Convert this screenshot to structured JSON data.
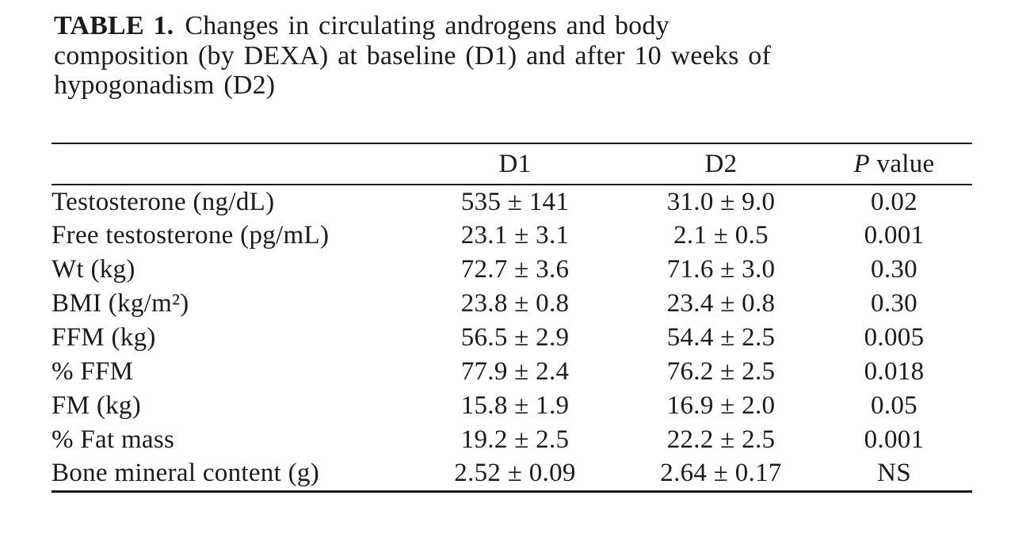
{
  "caption": {
    "label": "TABLE 1.",
    "lines": [
      "Changes in circulating androgens and body",
      "composition (by DEXA) at baseline (D1) and after 10 weeks of",
      "hypogonadism (D2)"
    ]
  },
  "table": {
    "headers": {
      "label": "",
      "d1": "D1",
      "d2": "D2",
      "p_italic": "P",
      "p_word": "value"
    },
    "rows": [
      {
        "label": "Testosterone (ng/dL)",
        "d1": "535 ± 141",
        "d2": "31.0 ± 9.0",
        "p": "0.02"
      },
      {
        "label": "Free testosterone (pg/mL)",
        "d1": "23.1 ± 3.1",
        "d2": "2.1 ± 0.5",
        "p": "0.001"
      },
      {
        "label": "Wt (kg)",
        "d1": "72.7 ± 3.6",
        "d2": "71.6 ± 3.0",
        "p": "0.30"
      },
      {
        "label": "BMI (kg/m²)",
        "d1": "23.8 ± 0.8",
        "d2": "23.4 ± 0.8",
        "p": "0.30"
      },
      {
        "label": "FFM (kg)",
        "d1": "56.5 ± 2.9",
        "d2": "54.4 ± 2.5",
        "p": "0.005"
      },
      {
        "label": "% FFM",
        "d1": "77.9 ± 2.4",
        "d2": "76.2 ± 2.5",
        "p": "0.018"
      },
      {
        "label": "FM (kg)",
        "d1": "15.8 ± 1.9",
        "d2": "16.9 ± 2.0",
        "p": "0.05"
      },
      {
        "label": "% Fat mass",
        "d1": "19.2 ± 2.5",
        "d2": "22.2 ± 2.5",
        "p": "0.001"
      },
      {
        "label": "Bone mineral content (g)",
        "d1": "2.52 ± 0.09",
        "d2": "2.64 ± 0.17",
        "p": "NS"
      }
    ]
  },
  "colors": {
    "text": "#1b1b1b",
    "background": "#ffffff",
    "rule": "#1b1b1b"
  }
}
